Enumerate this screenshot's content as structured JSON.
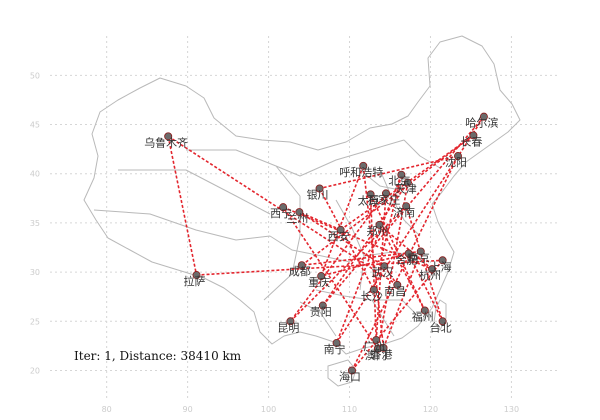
{
  "chart_data": {
    "type": "scatter",
    "title": "",
    "xlabel": "",
    "ylabel": "",
    "xlim": [
      73,
      136
    ],
    "ylim": [
      17,
      54
    ],
    "grid": true,
    "annotation": "Iter: 1, Distance: 38410 km",
    "cities": [
      {
        "name": "乌鲁木齐",
        "lon": 87.6,
        "lat": 43.8
      },
      {
        "name": "拉萨",
        "lon": 91.1,
        "lat": 29.7
      },
      {
        "name": "西宁",
        "lon": 101.8,
        "lat": 36.6
      },
      {
        "name": "兰州",
        "lon": 103.8,
        "lat": 36.1
      },
      {
        "name": "银川",
        "lon": 106.3,
        "lat": 38.5
      },
      {
        "name": "呼和浩特",
        "lon": 111.7,
        "lat": 40.8
      },
      {
        "name": "成都",
        "lon": 104.1,
        "lat": 30.7
      },
      {
        "name": "西安",
        "lon": 108.9,
        "lat": 34.3
      },
      {
        "name": "重庆",
        "lon": 106.5,
        "lat": 29.6
      },
      {
        "name": "贵阳",
        "lon": 106.7,
        "lat": 26.6
      },
      {
        "name": "昆明",
        "lon": 102.7,
        "lat": 25.0
      },
      {
        "name": "南宁",
        "lon": 108.4,
        "lat": 22.8
      },
      {
        "name": "海口",
        "lon": 110.3,
        "lat": 20.0
      },
      {
        "name": "广州",
        "lon": 113.3,
        "lat": 23.1
      },
      {
        "name": "澳门",
        "lon": 113.5,
        "lat": 22.2
      },
      {
        "name": "香港",
        "lon": 114.2,
        "lat": 22.3
      },
      {
        "name": "长沙",
        "lon": 113.0,
        "lat": 28.2
      },
      {
        "name": "武汉",
        "lon": 114.3,
        "lat": 30.6
      },
      {
        "name": "郑州",
        "lon": 113.7,
        "lat": 34.8
      },
      {
        "name": "太原",
        "lon": 112.6,
        "lat": 37.9
      },
      {
        "name": "石家庄",
        "lon": 114.5,
        "lat": 38.0
      },
      {
        "name": "北京",
        "lon": 116.4,
        "lat": 39.9
      },
      {
        "name": "天津",
        "lon": 117.2,
        "lat": 39.1
      },
      {
        "name": "济南",
        "lon": 117.0,
        "lat": 36.7
      },
      {
        "name": "合肥",
        "lon": 117.3,
        "lat": 31.9
      },
      {
        "name": "南京",
        "lon": 118.8,
        "lat": 32.1
      },
      {
        "name": "上海",
        "lon": 121.5,
        "lat": 31.2
      },
      {
        "name": "杭州",
        "lon": 120.2,
        "lat": 30.3
      },
      {
        "name": "南昌",
        "lon": 115.9,
        "lat": 28.7
      },
      {
        "name": "福州",
        "lon": 119.3,
        "lat": 26.1
      },
      {
        "name": "台北",
        "lon": 121.5,
        "lat": 25.0
      },
      {
        "name": "沈阳",
        "lon": 123.4,
        "lat": 41.8
      },
      {
        "name": "长春",
        "lon": 125.3,
        "lat": 43.9
      },
      {
        "name": "哈尔滨",
        "lon": 126.6,
        "lat": 45.8
      }
    ],
    "route": [
      "乌鲁木齐",
      "拉萨",
      "上海",
      "海口",
      "沈阳",
      "银川",
      "长沙",
      "北京",
      "南宁",
      "哈尔滨",
      "贵阳",
      "天津",
      "澳门",
      "西宁",
      "杭州",
      "郑州",
      "福州",
      "太原",
      "广州",
      "石家庄",
      "昆明",
      "济南",
      "台北",
      "合肥",
      "重庆",
      "呼和浩特",
      "香港",
      "南京",
      "成都",
      "长春",
      "西安",
      "兰州",
      "武汉",
      "南昌",
      "乌鲁木齐"
    ]
  }
}
